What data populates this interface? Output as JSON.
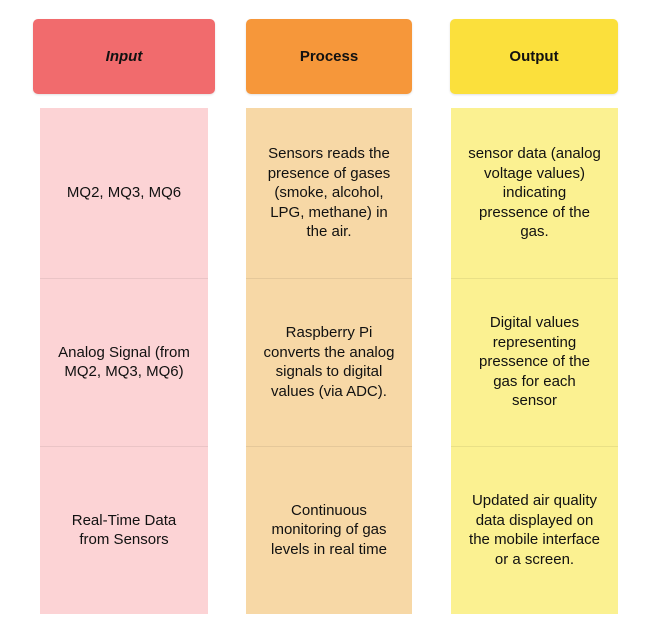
{
  "headers": {
    "input": "Input",
    "process": "Process",
    "output": "Output"
  },
  "colors": {
    "input_header": "#f16b6d",
    "process_header": "#f6973a",
    "output_header": "#fbe03c",
    "input_body": "#fcd3d5",
    "process_body": "#f7d8a6",
    "output_body": "#fbf191"
  },
  "input": [
    "MQ2, MQ3, MQ6",
    "Analog Signal (from\nMQ2, MQ3, MQ6)",
    "Real-Time Data\nfrom Sensors"
  ],
  "process": [
    "Sensors reads the\npresence of gases\n(smoke, alcohol,\nLPG, methane) in\nthe air.",
    "Raspberry Pi\nconverts the analog\nsignals to digital\nvalues (via ADC).",
    "Continuous\nmonitoring of gas\nlevels in real time"
  ],
  "output": [
    "sensor data (analog\nvoltage values)\nindicating\npressence of the\ngas.",
    "Digital values\nrepresenting\npressence of the\ngas  for each\nsensor",
    "Updated air quality\ndata displayed on\nthe mobile interface\nor a screen."
  ]
}
